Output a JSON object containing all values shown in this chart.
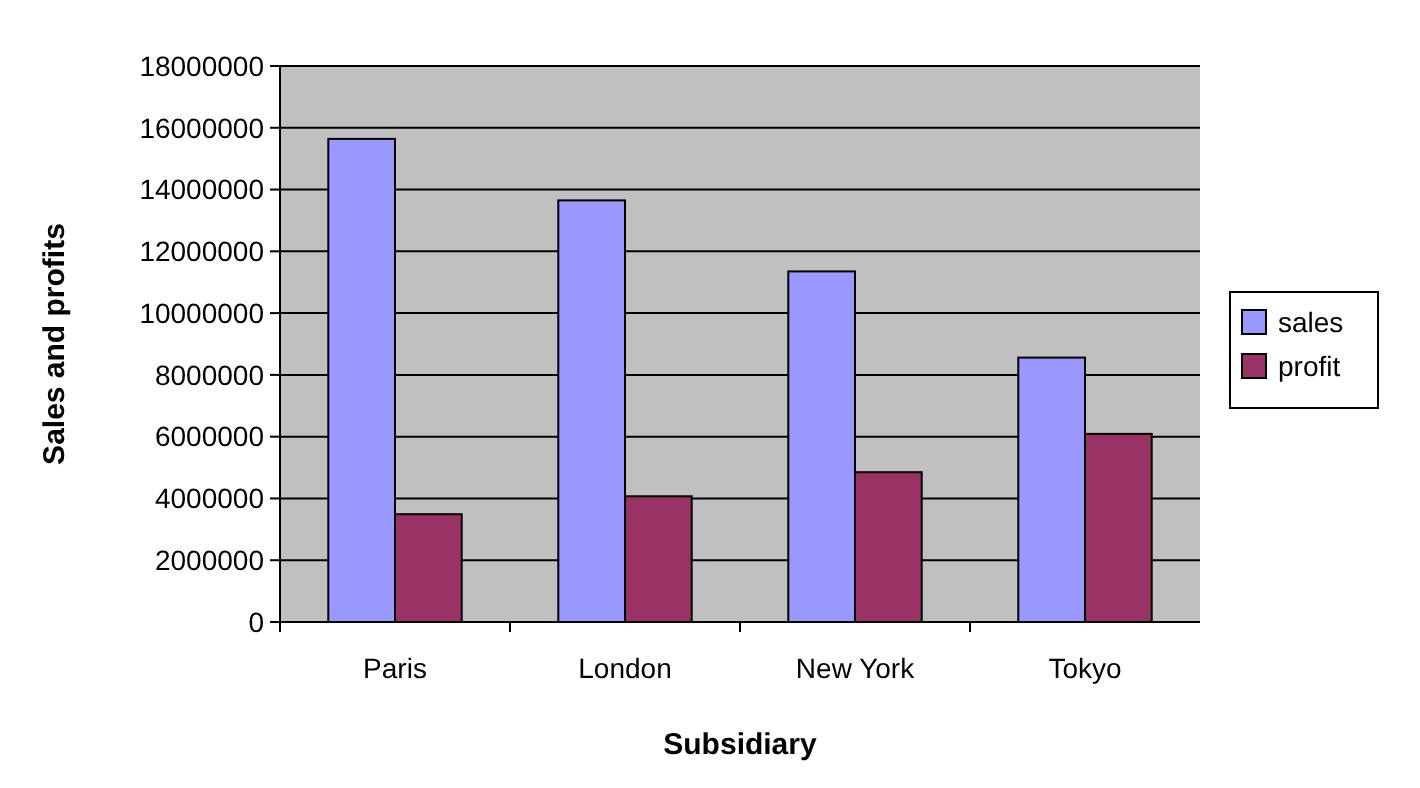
{
  "chart_data": {
    "type": "bar",
    "xlabel": "Subsidiary",
    "ylabel": "Sales and profits",
    "categories": [
      "Paris",
      "London",
      "New York",
      "Tokyo"
    ],
    "series": [
      {
        "name": "sales",
        "color": "#9999ff",
        "values": [
          15640000,
          13650000,
          11350000,
          8560000
        ]
      },
      {
        "name": "profit",
        "color": "#993366",
        "values": [
          3490000,
          4070000,
          4850000,
          6090000
        ]
      }
    ],
    "ylim": [
      0,
      18000000
    ],
    "yticks": [
      0,
      2000000,
      4000000,
      6000000,
      8000000,
      10000000,
      12000000,
      14000000,
      16000000,
      18000000
    ],
    "grid": "y",
    "legend": "right"
  }
}
